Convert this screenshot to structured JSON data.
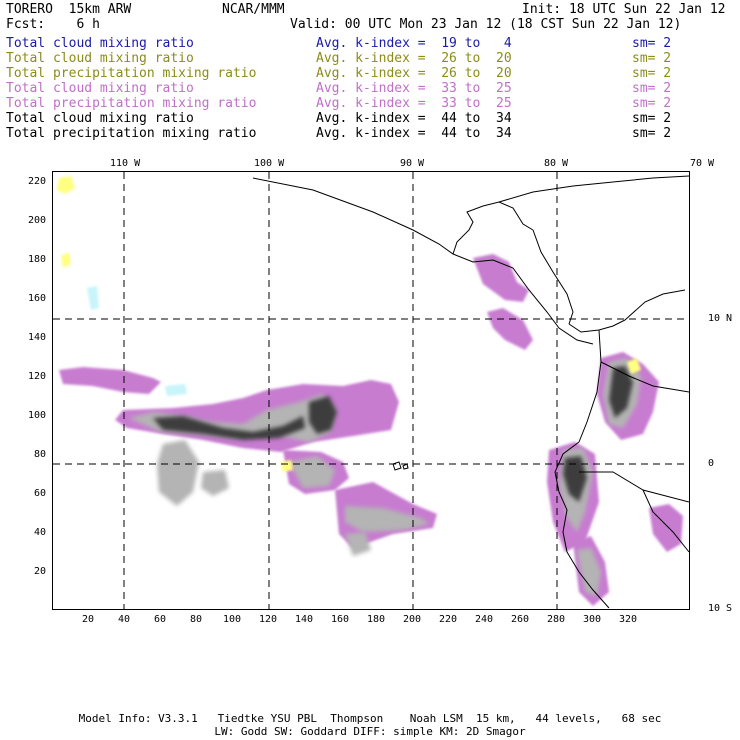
{
  "header": {
    "model": "TORERO  15km ARW",
    "org": "NCAR/MMM",
    "init": "Init: 18 UTC Sun 22 Jan 12",
    "fcst": "Fcst:    6 h",
    "valid": "Valid: 00 UTC Mon 23 Jan 12 (18 CST Sun 22 Jan 12)"
  },
  "legend": [
    {
      "field": "Total cloud mixing ratio",
      "kindex": "Avg. k-index =  19 to   4",
      "sm": "sm= 2",
      "color": "#1a1aa8"
    },
    {
      "field": "Total cloud mixing ratio",
      "kindex": "Avg. k-index =  26 to  20",
      "sm": "sm= 2",
      "color": "#8c8c1a"
    },
    {
      "field": "Total precipitation mixing ratio",
      "kindex": "Avg. k-index =  26 to  20",
      "sm": "sm= 2",
      "color": "#8c8c1a"
    },
    {
      "field": "Total cloud mixing ratio",
      "kindex": "Avg. k-index =  33 to  25",
      "sm": "sm= 2",
      "color": "#c070c8"
    },
    {
      "field": "Total precipitation mixing ratio",
      "kindex": "Avg. k-index =  33 to  25",
      "sm": "sm= 2",
      "color": "#c070c8"
    },
    {
      "field": "Total cloud mixing ratio",
      "kindex": "Avg. k-index =  44 to  34",
      "sm": "sm= 2",
      "color": "#000000"
    },
    {
      "field": "Total precipitation mixing ratio",
      "kindex": "Avg. k-index =  44 to  34",
      "sm": "sm= 2",
      "color": "#000000"
    }
  ],
  "map": {
    "lon_labels": [
      "110 W",
      "100 W",
      "90 W",
      "80 W",
      "70 W"
    ],
    "lat_labels": [
      "10 N",
      "0",
      "10 S"
    ],
    "y_ticks": [
      "220",
      "200",
      "180",
      "160",
      "140",
      "120",
      "100",
      "80",
      "60",
      "40",
      "20"
    ],
    "x_ticks": [
      "20",
      "40",
      "60",
      "80",
      "100",
      "120",
      "140",
      "160",
      "180",
      "200",
      "220",
      "240",
      "260",
      "280",
      "300",
      "320"
    ],
    "colors": {
      "purple": "#c77bd0",
      "gray": "#b4b4b4",
      "dark": "#3c3c3c",
      "yellow": "#ffff80",
      "cyan": "#c8f4fa",
      "coast": "#000000",
      "grid": "#000000"
    }
  },
  "footer": {
    "line1": "Model Info: V3.3.1   Tiedtke YSU PBL  Thompson    Noah LSM  15 km,   44 levels,   68 sec",
    "line2": "LW: Godd SW: Goddard DIFF: simple KM: 2D Smagor"
  }
}
